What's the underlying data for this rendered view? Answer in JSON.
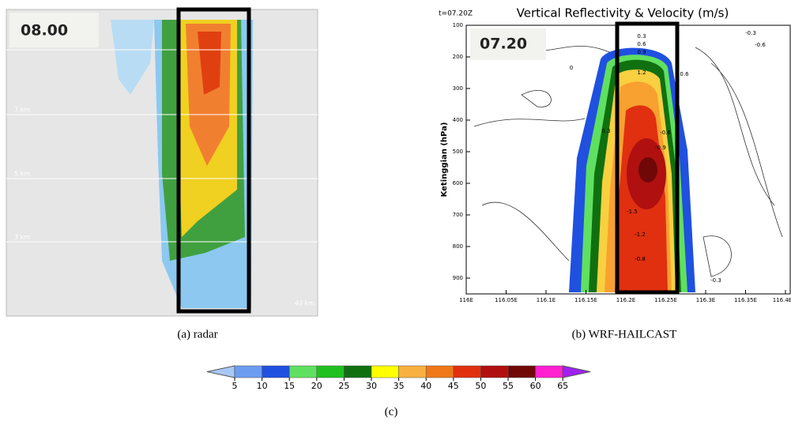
{
  "panel_a": {
    "time_label": "08.00",
    "height_labels": [
      "7 km",
      "5 km",
      "3 km"
    ],
    "corner_label": "43 km",
    "caption": "(a)   radar"
  },
  "panel_b": {
    "time_stamp": "t=07.20Z",
    "title": "Vertical Reflectivity & Velocity (m/s)",
    "time_label": "07.20",
    "y_label": "Ketinggian (hPa)",
    "yticks": [
      100,
      200,
      300,
      400,
      500,
      600,
      700,
      800,
      900
    ],
    "xticks": [
      "116E",
      "116.05E",
      "116.1E",
      "116.15E",
      "116.2E",
      "116.25E",
      "116.3E",
      "116.35E",
      "116.4E"
    ],
    "contour_labels": [
      "0.3",
      "0.6",
      "0.9",
      "1.2",
      "-0.3",
      "-0.6",
      "0.6",
      "0",
      "-0.6",
      "-0.9",
      "-1.5",
      "-1.2",
      "-0.8",
      "-0.3",
      "0.3"
    ],
    "caption": "(b)   WRF-HAILCAST"
  },
  "colorbar": {
    "ticks": [
      5,
      10,
      15,
      20,
      25,
      30,
      35,
      40,
      45,
      50,
      55,
      60,
      65
    ],
    "colors": [
      "#a8c8f8",
      "#6c9cf0",
      "#2050e0",
      "#60e060",
      "#20c020",
      "#107010",
      "#ffff00",
      "#f8b040",
      "#f07818",
      "#e03010",
      "#b01010",
      "#700808",
      "#ff20d0",
      "#a020f0"
    ],
    "caption": "(c)"
  }
}
